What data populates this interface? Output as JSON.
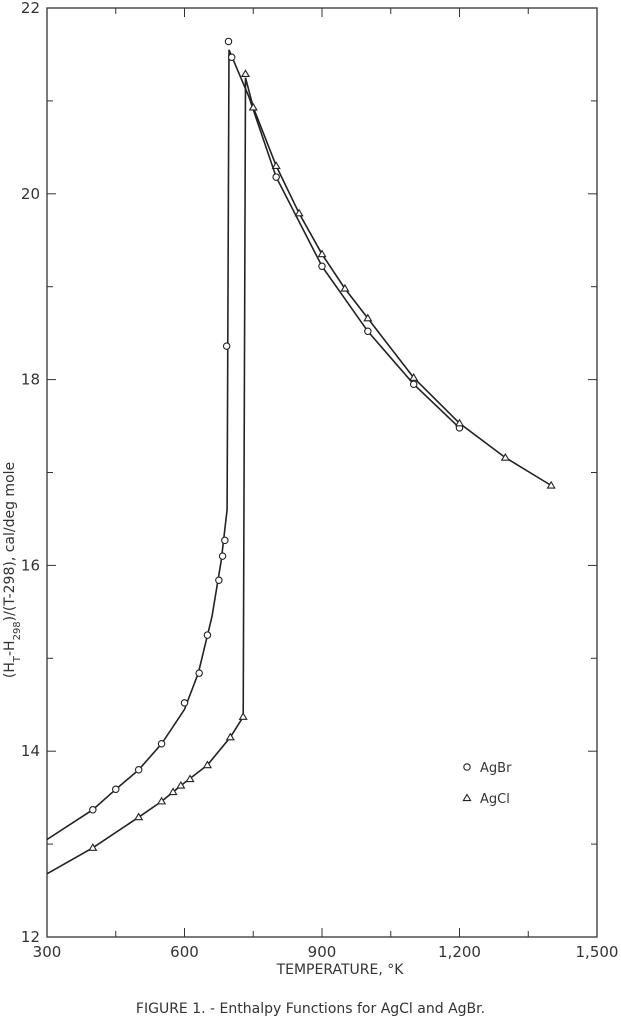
{
  "figure_caption": "FIGURE 1. - Enthalpy Functions for AgCl and AgBr.",
  "chart_data": {
    "type": "scatter",
    "title": "",
    "xlabel": "TEMPERATURE, °K",
    "ylabel": "(H_T-H_298)/(T-298), cal/deg mole",
    "xlim": [
      300,
      1500
    ],
    "ylim": [
      12,
      22
    ],
    "x_ticks": [
      300,
      600,
      900,
      1200,
      1500
    ],
    "x_tick_labels": [
      "300",
      "600",
      "900",
      "1,200",
      "1,500"
    ],
    "y_ticks": [
      12,
      14,
      16,
      18,
      20,
      22
    ],
    "y_tick_labels": [
      "12",
      "14",
      "16",
      "18",
      "20",
      "22"
    ],
    "grid": false,
    "legend_position": "lower-right",
    "series": [
      {
        "name": "AgBr",
        "marker": "circle",
        "points": [
          [
            400,
            13.37
          ],
          [
            450,
            13.59
          ],
          [
            500,
            13.8
          ],
          [
            550,
            14.08
          ],
          [
            600,
            14.52
          ],
          [
            632,
            14.84
          ],
          [
            650,
            15.25
          ],
          [
            675,
            15.84
          ],
          [
            683,
            16.1
          ],
          [
            688,
            16.27
          ],
          [
            692,
            18.36
          ],
          [
            696,
            21.64
          ],
          [
            703,
            21.47
          ],
          [
            800,
            20.18
          ],
          [
            900,
            19.22
          ],
          [
            1000,
            18.52
          ],
          [
            1100,
            17.95
          ],
          [
            1200,
            17.48
          ]
        ],
        "curve": [
          [
            300,
            13.05
          ],
          [
            400,
            13.37
          ],
          [
            450,
            13.59
          ],
          [
            500,
            13.8
          ],
          [
            550,
            14.08
          ],
          [
            600,
            14.45
          ],
          [
            630,
            14.84
          ],
          [
            660,
            15.45
          ],
          [
            680,
            16.05
          ],
          [
            693,
            16.6
          ],
          [
            697,
            21.55
          ],
          [
            740,
            21.05
          ],
          [
            800,
            20.18
          ],
          [
            900,
            19.22
          ],
          [
            1000,
            18.52
          ],
          [
            1100,
            17.95
          ],
          [
            1200,
            17.48
          ]
        ],
        "transition_x": 696
      },
      {
        "name": "AgCl",
        "marker": "triangle",
        "points": [
          [
            400,
            12.96
          ],
          [
            500,
            13.29
          ],
          [
            550,
            13.46
          ],
          [
            575,
            13.56
          ],
          [
            592,
            13.63
          ],
          [
            612,
            13.7
          ],
          [
            650,
            13.85
          ],
          [
            700,
            14.15
          ],
          [
            728,
            14.37
          ],
          [
            733,
            21.29
          ],
          [
            750,
            20.93
          ],
          [
            800,
            20.3
          ],
          [
            850,
            19.79
          ],
          [
            900,
            19.35
          ],
          [
            950,
            18.98
          ],
          [
            1000,
            18.66
          ],
          [
            1100,
            18.02
          ],
          [
            1200,
            17.53
          ],
          [
            1300,
            17.16
          ],
          [
            1400,
            16.86
          ]
        ],
        "curve": [
          [
            300,
            12.68
          ],
          [
            400,
            12.96
          ],
          [
            500,
            13.29
          ],
          [
            550,
            13.46
          ],
          [
            600,
            13.66
          ],
          [
            650,
            13.85
          ],
          [
            700,
            14.15
          ],
          [
            728,
            14.37
          ],
          [
            733,
            21.25
          ],
          [
            750,
            20.93
          ],
          [
            800,
            20.3
          ],
          [
            850,
            19.79
          ],
          [
            900,
            19.35
          ],
          [
            950,
            18.98
          ],
          [
            1000,
            18.66
          ],
          [
            1100,
            18.02
          ],
          [
            1200,
            17.53
          ],
          [
            1300,
            17.16
          ],
          [
            1400,
            16.86
          ]
        ],
        "transition_x": 728
      }
    ]
  }
}
